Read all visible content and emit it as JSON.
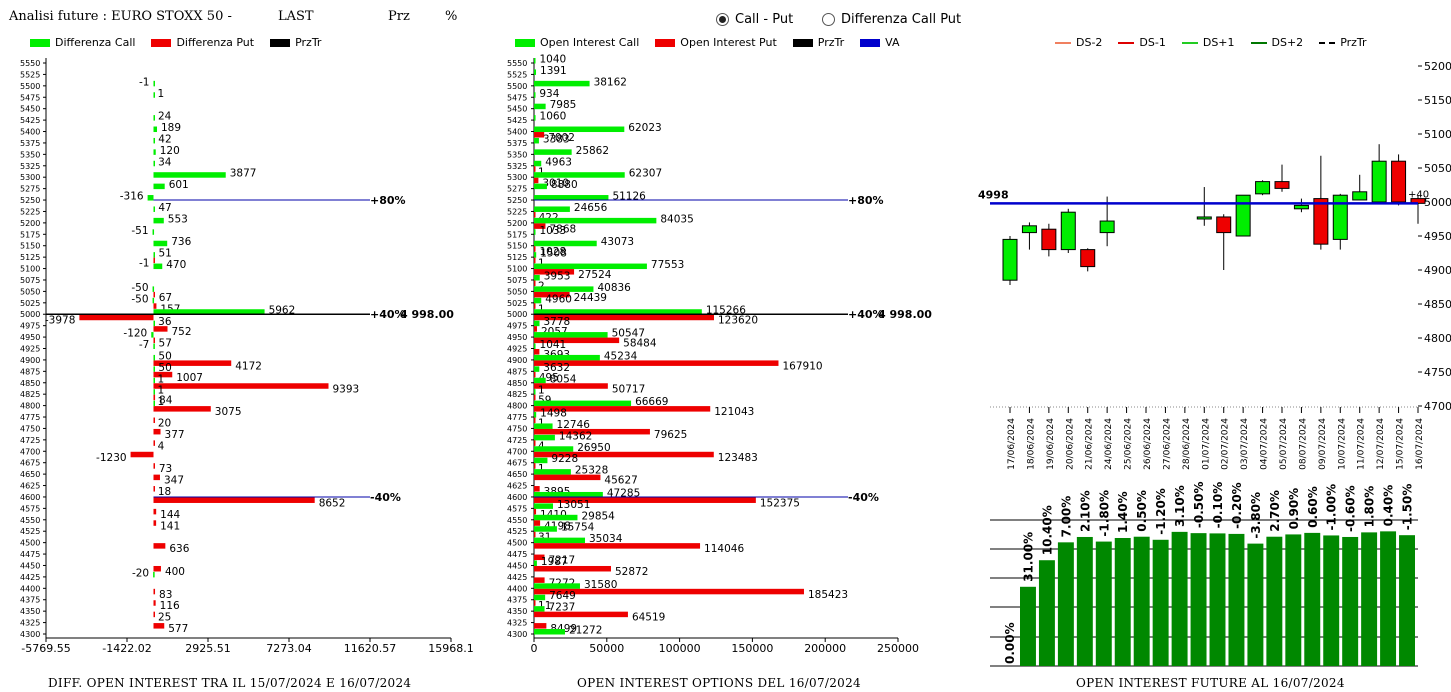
{
  "header": {
    "title": "Analisi future : EURO STOXX 50 -",
    "last": "LAST",
    "prz": "Prz",
    "pct": "%"
  },
  "mode": {
    "call_put": "Call - Put",
    "diff": "Differenza Call Put",
    "selected": "call_put"
  },
  "legends": {
    "left": [
      {
        "label": "Differenza Call",
        "color": "#00ee00"
      },
      {
        "label": "Differenza Put",
        "color": "#ee0000"
      },
      {
        "label": "PrzTr",
        "color": "#000000"
      }
    ],
    "mid": [
      {
        "label": "Open Interest Call",
        "color": "#00ee00"
      },
      {
        "label": "Open Interest Put",
        "color": "#ee0000"
      },
      {
        "label": "PrzTr",
        "color": "#000000"
      },
      {
        "label": "VA",
        "color": "#0000cc"
      }
    ],
    "right": [
      {
        "label": "DS-2",
        "color": "#f08060",
        "dash": false
      },
      {
        "label": "DS-1",
        "color": "#dd0000",
        "dash": false
      },
      {
        "label": "DS+1",
        "color": "#22cc22",
        "dash": false
      },
      {
        "label": "DS+2",
        "color": "#007700",
        "dash": false
      },
      {
        "label": "PrzTr",
        "color": "#000000",
        "dash": true
      }
    ]
  },
  "footers": {
    "left": "DIFF. OPEN INTEREST TRA IL 15/07/2024 E 16/07/2024",
    "mid": "OPEN INTEREST OPTIONS DEL 16/07/2024",
    "right": "OPEN INTEREST FUTURE AL 16/07/2024"
  },
  "chart_data": [
    {
      "type": "bar",
      "orientation": "horizontal",
      "strikes": [
        "5550",
        "5525",
        "5500",
        "5475",
        "5450",
        "5425",
        "5400",
        "5375",
        "5350",
        "5325",
        "5300",
        "5275",
        "5250",
        "5225",
        "5200",
        "5175",
        "5150",
        "5125",
        "5100",
        "5075",
        "5050",
        "5025",
        "5000",
        "4975",
        "4950",
        "4925",
        "4900",
        "4875",
        "4850",
        "4825",
        "4800",
        "4775",
        "4750",
        "4725",
        "4700",
        "4675",
        "4650",
        "4625",
        "4600",
        "4575",
        "4550",
        "4525",
        "4500",
        "4475",
        "4450",
        "4425",
        "4400",
        "4375",
        "4350",
        "4325",
        "4300"
      ],
      "call": [
        0,
        0,
        -1,
        1,
        0,
        24,
        189,
        42,
        120,
        34,
        3877,
        601,
        -316,
        47,
        553,
        -51,
        736,
        51,
        470,
        0,
        -50,
        -50,
        5962,
        36,
        -120,
        -7,
        50,
        50,
        1,
        1,
        1,
        0,
        0,
        0,
        0,
        0,
        0,
        0,
        0,
        0,
        0,
        0,
        0,
        0,
        0,
        -20,
        0,
        0,
        0,
        0,
        0
      ],
      "put": [
        0,
        0,
        0,
        0,
        0,
        0,
        0,
        0,
        0,
        0,
        0,
        0,
        0,
        0,
        0,
        0,
        0,
        -1,
        0,
        0,
        67,
        157,
        -3978,
        752,
        57,
        0,
        4172,
        1007,
        9393,
        84,
        3075,
        20,
        377,
        4,
        -1230,
        73,
        347,
        18,
        8652,
        144,
        141,
        0,
        636,
        0,
        400,
        0,
        83,
        116,
        25,
        577,
        0
      ],
      "xticks": [
        "-5769.55",
        "-1422.02",
        "2925.51",
        "7273.04",
        "11620.57",
        "15968.1"
      ],
      "xlim": [
        -5769.55,
        15968.1
      ],
      "markers": [
        {
          "strike": "5250",
          "label": "+80%"
        },
        {
          "strike": "5000",
          "label": "+40%"
        },
        {
          "strike": "4600",
          "label": "-40%"
        }
      ],
      "price_label": "4 998.00"
    },
    {
      "type": "bar",
      "orientation": "horizontal",
      "strikes": [
        "5550",
        "5525",
        "5500",
        "5475",
        "5450",
        "5425",
        "5400",
        "5375",
        "5350",
        "5325",
        "5300",
        "5275",
        "5250",
        "5225",
        "5200",
        "5175",
        "5150",
        "5125",
        "5100",
        "5075",
        "5050",
        "5025",
        "5000",
        "4975",
        "4950",
        "4925",
        "4900",
        "4875",
        "4850",
        "4825",
        "4800",
        "4775",
        "4750",
        "4725",
        "4700",
        "4675",
        "4650",
        "4625",
        "4600",
        "4575",
        "4550",
        "4525",
        "4500",
        "4475",
        "4450",
        "4425",
        "4400",
        "4375",
        "4350",
        "4325",
        "4300"
      ],
      "call": [
        1040,
        1391,
        38162,
        934,
        7985,
        1060,
        62023,
        3383,
        25862,
        4963,
        62307,
        8880,
        51126,
        24656,
        84035,
        1033,
        43073,
        1508,
        77553,
        3953,
        40836,
        4960,
        115266,
        3778,
        50547,
        1041,
        45234,
        3632,
        8054,
        1,
        66669,
        1498,
        12746,
        14362,
        26950,
        9228,
        25328,
        0,
        47285,
        13051,
        29854,
        15754,
        35034,
        0,
        1987,
        0,
        31580,
        7649,
        7237,
        0,
        21272
      ],
      "put": [
        0,
        0,
        0,
        0,
        0,
        0,
        7002,
        0,
        0,
        1,
        3010,
        0,
        0,
        422,
        7868,
        0,
        1028,
        1,
        27524,
        2,
        24439,
        1,
        123620,
        2057,
        58484,
        3693,
        167910,
        495,
        50717,
        59,
        121043,
        1,
        79625,
        4,
        123483,
        1,
        45627,
        3895,
        152375,
        1410,
        4198,
        31,
        114046,
        7217,
        52872,
        7272,
        185423,
        11,
        64519,
        8499,
        0
      ],
      "xticks": [
        "0",
        "50000",
        "100000",
        "150000",
        "200000",
        "250000"
      ],
      "xlim": [
        0,
        250000
      ],
      "markers": [
        {
          "strike": "5250",
          "label": "+80%"
        },
        {
          "strike": "5000",
          "label": "+40%"
        },
        {
          "strike": "4600",
          "label": "-40%"
        }
      ],
      "price_label": "4 998.00"
    },
    {
      "type": "candlestick",
      "dates": [
        "17/06/2024",
        "18/06/2024",
        "19/06/2024",
        "20/06/2024",
        "21/06/2024",
        "24/06/2024",
        "25/06/2024",
        "26/06/2024",
        "27/06/2024",
        "28/06/2024",
        "01/07/2024",
        "02/07/2024",
        "03/07/2024",
        "04/07/2024",
        "05/07/2024",
        "08/07/2024",
        "09/07/2024",
        "10/07/2024",
        "11/07/2024",
        "12/07/2024",
        "15/07/2024",
        "16/07/2024"
      ],
      "candles": [
        {
          "o": 4885,
          "h": 4950,
          "l": 4878,
          "c": 4945
        },
        {
          "o": 4955,
          "h": 4970,
          "l": 4930,
          "c": 4965
        },
        {
          "o": 4960,
          "h": 4968,
          "l": 4920,
          "c": 4930
        },
        {
          "o": 4930,
          "h": 4990,
          "l": 4925,
          "c": 4985
        },
        {
          "o": 4930,
          "h": 4932,
          "l": 4898,
          "c": 4905
        },
        {
          "o": 4955,
          "h": 5008,
          "l": 4935,
          "c": 4972
        },
        null,
        null,
        null,
        null,
        {
          "o": 4975,
          "h": 5022,
          "l": 4965,
          "c": 4978
        },
        {
          "o": 4978,
          "h": 4982,
          "l": 4900,
          "c": 4955
        },
        {
          "o": 4950,
          "h": 5010,
          "l": 4950,
          "c": 5010
        },
        {
          "o": 5012,
          "h": 5032,
          "l": 5010,
          "c": 5030
        },
        {
          "o": 5030,
          "h": 5055,
          "l": 5015,
          "c": 5020
        },
        {
          "o": 4990,
          "h": 5005,
          "l": 4985,
          "c": 4995
        },
        {
          "o": 5005,
          "h": 5068,
          "l": 4930,
          "c": 4938
        },
        {
          "o": 4945,
          "h": 5012,
          "l": 4930,
          "c": 5010
        },
        {
          "o": 5003,
          "h": 5040,
          "l": 5003,
          "c": 5015
        },
        {
          "o": 5000,
          "h": 5085,
          "l": 5000,
          "c": 5060
        },
        {
          "o": 5060,
          "h": 5070,
          "l": 4995,
          "c": 5000
        },
        {
          "o": 5005,
          "h": 5010,
          "l": 4968,
          "c": 4998
        }
      ],
      "yticks": [
        "5200",
        "5150",
        "5100",
        "5050",
        "5000",
        "4950",
        "4900",
        "4850",
        "4800",
        "4750",
        "4700"
      ],
      "ylim": [
        4700,
        5200
      ],
      "price_line": 4998,
      "price_label": "4998",
      "change_label": "+40"
    },
    {
      "type": "bar",
      "values": [
        31.0,
        41.4,
        48.4,
        50.5,
        48.7,
        50.1,
        50.6,
        49.4,
        52.5,
        52.0,
        51.9,
        51.7,
        47.9,
        50.6,
        51.5,
        52.1,
        51.1,
        50.5,
        52.3,
        52.7,
        51.2
      ],
      "labels": [
        "31.00%",
        "10.40%",
        "7.00%",
        "2.10%",
        "-1.80%",
        "1.40%",
        "0.50%",
        "-1.20%",
        "3.10%",
        "-0.50%",
        "-0.10%",
        "-0.20%",
        "-3.80%",
        "2.70%",
        "0.90%",
        "0.60%",
        "-1.00%",
        "-0.60%",
        "1.80%",
        "0.40%",
        "-1.50%"
      ],
      "zero_label": "0.00%",
      "ylim": [
        0,
        60
      ]
    }
  ]
}
